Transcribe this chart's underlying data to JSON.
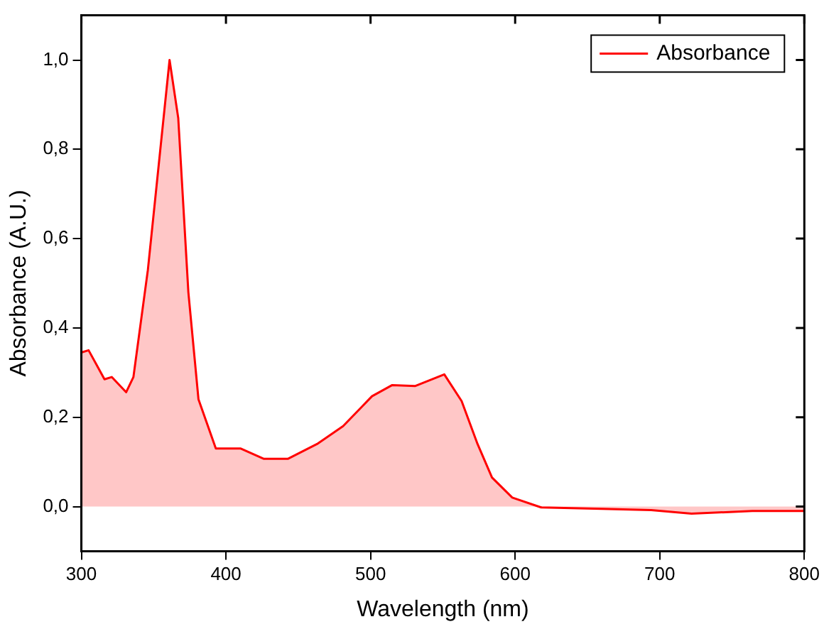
{
  "chart_data": {
    "type": "area",
    "xlabel": "Wavelength (nm)",
    "ylabel": "Absorbance (A.U.)",
    "xlim": [
      300,
      800
    ],
    "xticks": [
      300,
      400,
      500,
      600,
      700,
      800
    ],
    "ylim": [
      -0.1,
      1.1
    ],
    "yticks": [
      {
        "value": 0,
        "label": "0,0"
      },
      {
        "value": 0.2,
        "label": "0,2"
      },
      {
        "value": 0.4,
        "label": "0,4"
      },
      {
        "value": 0.6,
        "label": "0,6"
      },
      {
        "value": 0.8,
        "label": "0,8"
      },
      {
        "value": 1,
        "label": "1,0"
      }
    ],
    "grid": false,
    "legend": "top right",
    "marker": "none",
    "line_style": "solid",
    "series": [
      {
        "name": "Absorbance",
        "color": "#ff0000",
        "x": [
          300,
          305,
          316,
          321,
          331,
          336,
          346,
          361,
          367,
          374,
          381,
          393,
          410,
          426,
          443,
          463,
          481,
          501,
          515,
          531,
          551,
          563,
          574,
          584,
          598,
          618,
          660,
          694,
          722,
          764,
          800
        ],
        "values": [
          0.345,
          0.35,
          0.285,
          0.29,
          0.256,
          0.29,
          0.53,
          1.0,
          0.87,
          0.48,
          0.24,
          0.13,
          0.13,
          0.107,
          0.107,
          0.14,
          0.18,
          0.247,
          0.272,
          0.27,
          0.296,
          0.236,
          0.14,
          0.065,
          0.02,
          -0.002,
          -0.005,
          -0.008,
          -0.016,
          -0.01,
          -0.01
        ]
      }
    ]
  }
}
